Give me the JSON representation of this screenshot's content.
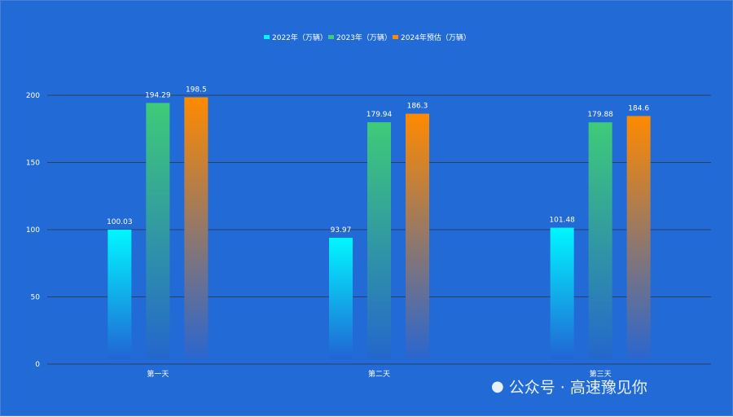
{
  "chart_data": {
    "type": "bar",
    "categories": [
      "第一天",
      "第二天",
      "第三天"
    ],
    "series": [
      {
        "name": "2022年（万辆）",
        "values": [
          100.03,
          93.97,
          101.48
        ],
        "color_top": "#00f7ff",
        "color_bottom": "#2165d4"
      },
      {
        "name": "2023年（万辆）",
        "values": [
          194.29,
          179.94,
          179.88
        ],
        "color_top": "#3ecb78",
        "color_bottom": "#2467cc"
      },
      {
        "name": "2024年预估（万辆）",
        "values": [
          198.5,
          186.3,
          184.6
        ],
        "color_top": "#ff8a00",
        "color_bottom": "#2a66cf"
      }
    ],
    "ylim": [
      0,
      200
    ],
    "yticks": [
      0,
      50,
      100,
      150,
      200
    ],
    "grid": true,
    "legend": "top-center",
    "data_labels": true
  },
  "watermark": "公众号 · 高速豫见你"
}
